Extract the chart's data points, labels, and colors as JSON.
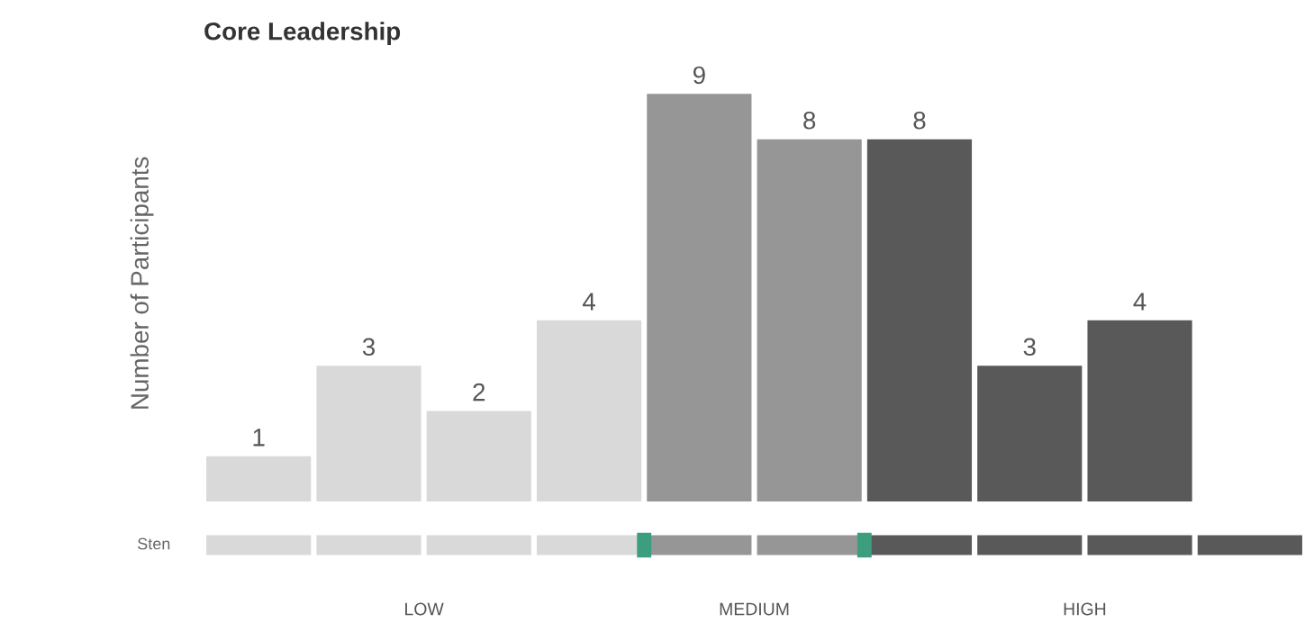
{
  "chart_data": {
    "type": "bar",
    "title": "Core Leadership",
    "ylabel": "Number of Participants",
    "categories": [
      null,
      null,
      null,
      null,
      null,
      null,
      null,
      null,
      null,
      null
    ],
    "values": [
      1,
      3,
      2,
      4,
      9,
      8,
      8,
      3,
      4,
      null
    ],
    "colors": [
      "#d9d9d9",
      "#d9d9d9",
      "#d9d9d9",
      "#d9d9d9",
      "#969696",
      "#969696",
      "#595959",
      "#595959",
      "#595959",
      "#595959"
    ],
    "data_labels": true,
    "grid": false,
    "legend": false,
    "annotations": [
      "Sten",
      "LOW",
      "MEDIUM",
      "HIGH"
    ]
  }
}
